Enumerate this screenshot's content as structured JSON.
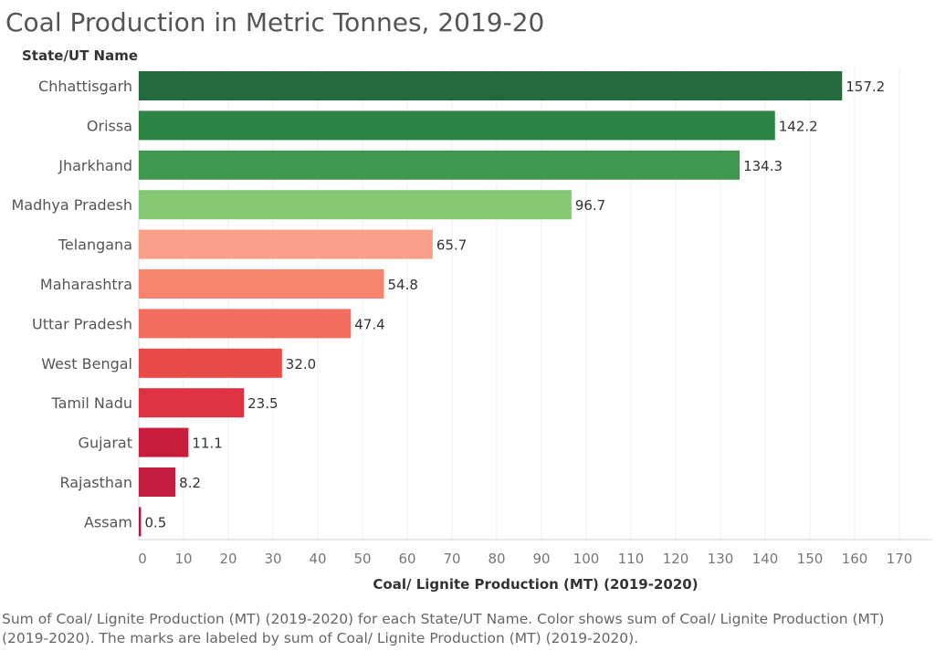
{
  "chart_data": {
    "type": "bar",
    "orientation": "horizontal",
    "title": "Coal Production in Metric Tonnes, 2019-20",
    "row_header": "State/UT Name",
    "xlabel": "Coal/ Lignite Production (MT) (2019-2020)",
    "xlim": [
      0,
      170
    ],
    "xticks": [
      0,
      10,
      20,
      30,
      40,
      50,
      60,
      70,
      80,
      90,
      100,
      110,
      120,
      130,
      140,
      150,
      160,
      170
    ],
    "grid": true,
    "categories": [
      "Chhattisgarh",
      "Orissa",
      "Jharkhand",
      "Madhya Pradesh",
      "Telangana",
      "Maharashtra",
      "Uttar Pradesh",
      "West Bengal",
      "Tamil Nadu",
      "Gujarat",
      "Rajasthan",
      "Assam"
    ],
    "values": [
      157.2,
      142.2,
      134.3,
      96.7,
      65.7,
      54.8,
      47.4,
      32.0,
      23.5,
      11.1,
      8.2,
      0.5
    ],
    "value_labels": [
      "157.2",
      "142.2",
      "134.3",
      "96.7",
      "65.7",
      "54.8",
      "47.4",
      "32.0",
      "23.5",
      "11.1",
      "8.2",
      "0.5"
    ],
    "colors": [
      "#236a3c",
      "#2d8545",
      "#3e9850",
      "#84c874",
      "#f9a08a",
      "#f7846c",
      "#f36e5f",
      "#e84a48",
      "#de3244",
      "#c81d3c",
      "#c41c3d",
      "#b01840"
    ]
  },
  "caption": "Sum of Coal/ Lignite Production (MT) (2019-2020) for each State/UT Name.  Color shows sum of Coal/ Lignite Production (MT) (2019-2020).  The marks are labeled by sum of Coal/ Lignite Production (MT) (2019-2020)."
}
